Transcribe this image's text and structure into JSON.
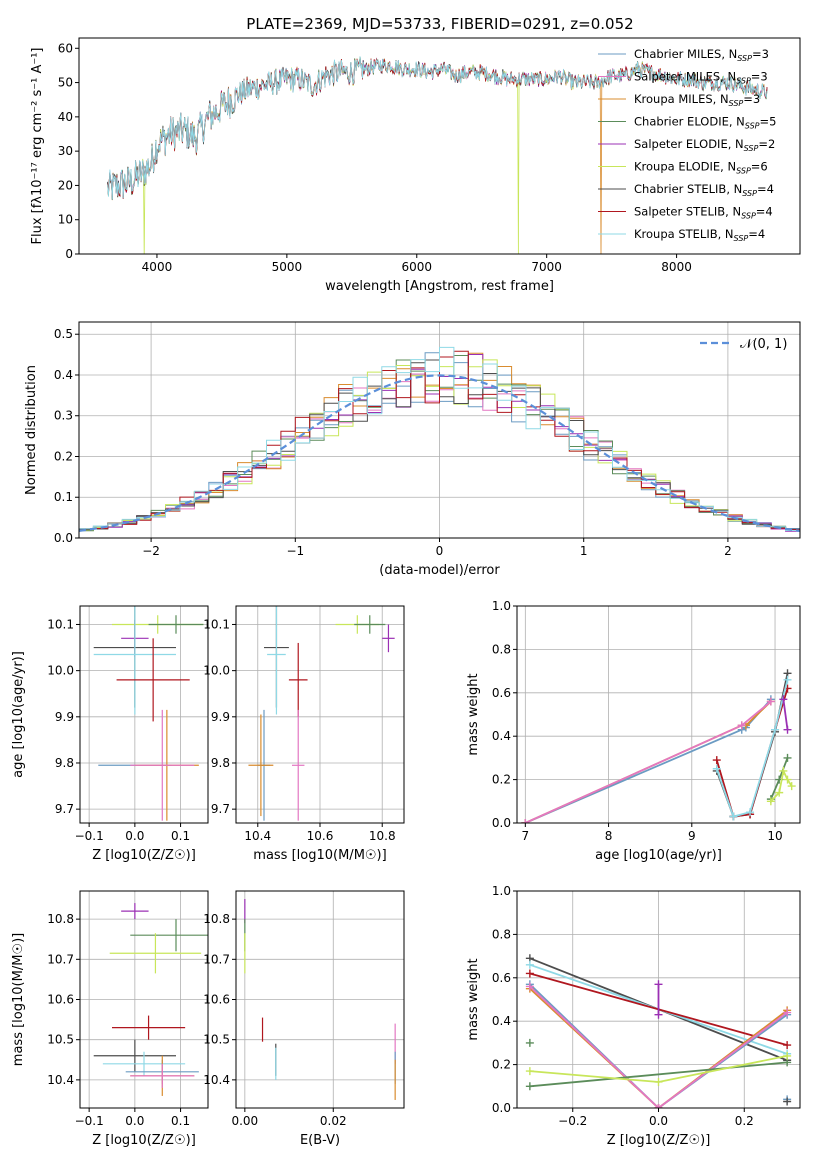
{
  "figure": {
    "title": "PLATE=2369, MJD=53733, FIBERID=0291, z=0.052"
  },
  "colors": {
    "chabrier_miles": "#6b9bc3",
    "salpeter_miles": "#e377c2",
    "kroupa_miles": "#d98c2f",
    "chabrier_elodie": "#5b8c5a",
    "salpeter_elodie": "#9b30b4",
    "kroupa_elodie": "#c8e65a",
    "chabrier_stelib": "#4d4d4d",
    "salpeter_stelib": "#b0171f",
    "kroupa_stelib": "#8fd9e6",
    "gaussian": "#5b8fd9"
  },
  "chart_data": [
    {
      "id": "spectrum",
      "type": "line",
      "xlabel": "wavelength [Angstrom, rest frame]",
      "ylabel": "Flux [fλ10⁻¹⁷ erg cm⁻² s⁻¹ A⁻¹]",
      "xlim": [
        3400,
        8950
      ],
      "ylim": [
        0,
        63
      ],
      "xticks": [
        4000,
        5000,
        6000,
        7000,
        8000
      ],
      "yticks": [
        0,
        10,
        20,
        30,
        40,
        50,
        60
      ],
      "legend_position": "top-right",
      "legend": [
        "Chabrier MILES, N_SSP=3",
        "Salpeter MILES, N_SSP=3",
        "Kroupa MILES, N_SSP=3",
        "Chabrier ELODIE, N_SSP=5",
        "Salpeter ELODIE, N_SSP=2",
        "Kroupa ELODIE, N_SSP=6",
        "Chabrier STELIB, N_SSP=4",
        "Salpeter STELIB, N_SSP=4",
        "Kroupa STELIB, N_SSP=4"
      ],
      "continuum": {
        "x": [
          3620,
          3700,
          3800,
          3900,
          3950,
          4000,
          4100,
          4200,
          4300,
          4400,
          4500,
          4600,
          4700,
          4800,
          4900,
          5000,
          5100,
          5200,
          5300,
          5400,
          5500,
          5600,
          5700,
          5800,
          5900,
          6000,
          6100,
          6200,
          6300,
          6400,
          6500,
          6600,
          6700,
          6800,
          6900,
          7000,
          7100,
          7200,
          7300,
          7400,
          7500,
          7600,
          7700,
          7800,
          7900,
          8000,
          8100,
          8200,
          8300,
          8400,
          8500,
          8600,
          8700
        ],
        "y": [
          19,
          20,
          21,
          24,
          26,
          32,
          35,
          36,
          34,
          40,
          43,
          46,
          48,
          49,
          50,
          51,
          51,
          49,
          52,
          53,
          53,
          54,
          55,
          55,
          54,
          54,
          53,
          54,
          52,
          53,
          53,
          52,
          51,
          51,
          51,
          51,
          52,
          50,
          50,
          50,
          52,
          52,
          54,
          53,
          52,
          51,
          51,
          50,
          50,
          50,
          49,
          48,
          47
        ]
      },
      "dropouts": [
        {
          "series": "kroupa_elodie",
          "x": 3900
        },
        {
          "series": "kroupa_elodie",
          "x": 6780
        },
        {
          "series": "kroupa_miles",
          "x": 7420
        }
      ]
    },
    {
      "id": "residuals",
      "type": "step",
      "xlabel": "(data-model)/error",
      "ylabel": "Normed distribution",
      "xlim": [
        -2.5,
        2.5
      ],
      "ylim": [
        0,
        0.53
      ],
      "xticks": [
        -2,
        -1,
        0,
        1,
        2
      ],
      "yticks": [
        0.0,
        0.1,
        0.2,
        0.3,
        0.4,
        0.5
      ],
      "legend_position": "top-right",
      "gaussian_label": "𝒩(0, 1)"
    },
    {
      "id": "age_vs_Z",
      "type": "errorbar",
      "xlabel": "Z [log10(Z/Z☉)]",
      "ylabel": "age [log10(age/yr)]",
      "xlim": [
        -0.12,
        0.16
      ],
      "ylim": [
        9.67,
        10.14
      ],
      "xticks": [
        -0.1,
        0.0,
        0.1
      ],
      "yticks": [
        9.7,
        9.8,
        9.9,
        10.0,
        10.1
      ],
      "points": [
        {
          "s": "kroupa_elodie",
          "x": 0.05,
          "y": 10.1,
          "xerr": 0.1,
          "yerr": 0.02
        },
        {
          "s": "chabrier_elodie",
          "x": 0.09,
          "y": 10.1,
          "xerr": 0.06,
          "yerr": 0.02
        },
        {
          "s": "salpeter_elodie",
          "x": 0.0,
          "y": 10.07,
          "xerr": 0.03,
          "yerr": 0.04
        },
        {
          "s": "chabrier_stelib",
          "x": 0.0,
          "y": 10.05,
          "xerr": 0.09,
          "yerr": 0.13
        },
        {
          "s": "kroupa_stelib",
          "x": 0.0,
          "y": 10.035,
          "xerr": 0.09,
          "yerr": 0.13
        },
        {
          "s": "salpeter_stelib",
          "x": 0.04,
          "y": 9.98,
          "xerr": 0.08,
          "yerr": 0.09
        },
        {
          "s": "chabrier_miles",
          "x": 0.0,
          "y": 9.795,
          "xerr": 0.08,
          "yerr": 0.0
        },
        {
          "s": "kroupa_miles",
          "x": 0.07,
          "y": 9.795,
          "xerr": 0.07,
          "yerr": 0.12
        },
        {
          "s": "salpeter_miles",
          "x": 0.06,
          "y": 9.795,
          "xerr": 0.07,
          "yerr": 0.12
        }
      ]
    },
    {
      "id": "age_vs_mass",
      "type": "errorbar",
      "xlabel": "mass [log10(M/M☉)]",
      "ylabel": "",
      "xlim": [
        10.33,
        10.87
      ],
      "ylim": [
        9.67,
        10.14
      ],
      "xticks": [
        10.4,
        10.6,
        10.8
      ],
      "yticks": [
        9.7,
        9.8,
        9.9,
        10.0,
        10.1
      ],
      "points": [
        {
          "s": "kroupa_elodie",
          "x": 10.72,
          "y": 10.1,
          "xerr": 0.07,
          "yerr": 0.02
        },
        {
          "s": "chabrier_elodie",
          "x": 10.76,
          "y": 10.1,
          "xerr": 0.05,
          "yerr": 0.02
        },
        {
          "s": "salpeter_elodie",
          "x": 10.82,
          "y": 10.07,
          "xerr": 0.02,
          "yerr": 0.03
        },
        {
          "s": "chabrier_stelib",
          "x": 10.46,
          "y": 10.05,
          "xerr": 0.04,
          "yerr": 0.13
        },
        {
          "s": "kroupa_stelib",
          "x": 10.46,
          "y": 10.035,
          "xerr": 0.03,
          "yerr": 0.13
        },
        {
          "s": "salpeter_stelib",
          "x": 10.53,
          "y": 9.98,
          "xerr": 0.03,
          "yerr": 0.08
        },
        {
          "s": "chabrier_miles",
          "x": 10.42,
          "y": 9.795,
          "xerr": 0.02,
          "yerr": 0.12
        },
        {
          "s": "kroupa_miles",
          "x": 10.41,
          "y": 9.795,
          "xerr": 0.04,
          "yerr": 0.11
        },
        {
          "s": "salpeter_miles",
          "x": 10.53,
          "y": 9.795,
          "xerr": 0.02,
          "yerr": 0.12
        }
      ]
    },
    {
      "id": "weight_vs_age",
      "type": "line",
      "xlabel": "age [log10(age/yr)]",
      "ylabel": "mass weight",
      "xlim": [
        6.9,
        10.3
      ],
      "ylim": [
        0,
        1.0
      ],
      "xticks": [
        7,
        8,
        9,
        10
      ],
      "yticks": [
        0.0,
        0.2,
        0.4,
        0.6,
        0.8,
        1.0
      ],
      "series": [
        {
          "s": "chabrier_miles",
          "x": [
            7.0,
            9.6,
            9.65,
            9.95
          ],
          "y": [
            0.0,
            0.43,
            0.44,
            0.57
          ]
        },
        {
          "s": "kroupa_miles",
          "x": [
            7.0,
            9.6,
            9.65,
            9.95
          ],
          "y": [
            0.0,
            0.45,
            0.45,
            0.56
          ]
        },
        {
          "s": "salpeter_miles",
          "x": [
            7.0,
            9.6,
            9.95
          ],
          "y": [
            0.0,
            0.45,
            0.56
          ]
        },
        {
          "s": "chabrier_stelib",
          "x": [
            9.3,
            9.5,
            9.7,
            10.0,
            10.15
          ],
          "y": [
            0.24,
            0.03,
            0.04,
            0.42,
            0.69
          ]
        },
        {
          "s": "salpeter_stelib",
          "x": [
            9.3,
            9.5,
            9.7,
            10.0,
            10.15
          ],
          "y": [
            0.29,
            0.03,
            0.04,
            0.43,
            0.62
          ]
        },
        {
          "s": "kroupa_stelib",
          "x": [
            9.3,
            9.5,
            9.7,
            10.0,
            10.15
          ],
          "y": [
            0.25,
            0.03,
            0.05,
            0.43,
            0.66
          ]
        },
        {
          "s": "chabrier_elodie",
          "x": [
            9.95,
            10.05,
            10.15
          ],
          "y": [
            0.11,
            0.2,
            0.3
          ]
        },
        {
          "s": "kroupa_elodie",
          "x": [
            9.95,
            10.05,
            10.1,
            10.15,
            10.2
          ],
          "y": [
            0.1,
            0.14,
            0.24,
            0.2,
            0.17
          ]
        },
        {
          "s": "salpeter_elodie",
          "x": [
            10.1,
            10.15
          ],
          "y": [
            0.57,
            0.43
          ]
        }
      ]
    },
    {
      "id": "mass_vs_Z",
      "type": "errorbar",
      "xlabel": "Z [log10(Z/Z☉)]",
      "ylabel": "mass [log10(M/M☉)]",
      "xlim": [
        -0.12,
        0.16
      ],
      "ylim": [
        10.33,
        10.87
      ],
      "xticks": [
        -0.1,
        0.0,
        0.1
      ],
      "yticks": [
        10.4,
        10.5,
        10.6,
        10.7,
        10.8
      ],
      "points": [
        {
          "s": "salpeter_elodie",
          "x": 0.0,
          "y": 10.82,
          "xerr": 0.03,
          "yerr": 0.02
        },
        {
          "s": "chabrier_elodie",
          "x": 0.09,
          "y": 10.76,
          "xerr": 0.1,
          "yerr": 0.04
        },
        {
          "s": "kroupa_elodie",
          "x": 0.045,
          "y": 10.715,
          "xerr": 0.1,
          "yerr": 0.05
        },
        {
          "s": "salpeter_stelib",
          "x": 0.03,
          "y": 10.53,
          "xerr": 0.08,
          "yerr": 0.03
        },
        {
          "s": "chabrier_stelib",
          "x": 0.0,
          "y": 10.46,
          "xerr": 0.09,
          "yerr": 0.04
        },
        {
          "s": "kroupa_stelib",
          "x": 0.02,
          "y": 10.44,
          "xerr": 0.09,
          "yerr": 0.03
        },
        {
          "s": "chabrier_miles",
          "x": 0.06,
          "y": 10.42,
          "xerr": 0.08,
          "yerr": 0.03
        },
        {
          "s": "kroupa_miles",
          "x": 0.06,
          "y": 10.41,
          "xerr": 0.07,
          "yerr": 0.05
        },
        {
          "s": "salpeter_miles",
          "x": 0.06,
          "y": 10.41,
          "xerr": 0.07,
          "yerr": 0.03
        }
      ]
    },
    {
      "id": "mass_vs_ebv",
      "type": "errorbar",
      "xlabel": "E(B-V)",
      "ylabel": "",
      "xlim": [
        -0.002,
        0.036
      ],
      "ylim": [
        10.33,
        10.87
      ],
      "xticks": [
        0.0,
        0.02
      ],
      "yticks": [
        10.4,
        10.5,
        10.6,
        10.7,
        10.8
      ],
      "points": [
        {
          "s": "salpeter_elodie",
          "x": 0.0,
          "y": 10.82,
          "xerr": 0.0,
          "yerr": 0.03
        },
        {
          "s": "chabrier_elodie",
          "x": 0.0,
          "y": 10.76,
          "xerr": 0.0,
          "yerr": 0.04
        },
        {
          "s": "kroupa_elodie",
          "x": 0.0,
          "y": 10.715,
          "xerr": 0.0,
          "yerr": 0.05
        },
        {
          "s": "salpeter_stelib",
          "x": 0.004,
          "y": 10.525,
          "xerr": 0.0,
          "yerr": 0.03
        },
        {
          "s": "chabrier_stelib",
          "x": 0.007,
          "y": 10.45,
          "xerr": 0.0,
          "yerr": 0.04
        },
        {
          "s": "kroupa_stelib",
          "x": 0.007,
          "y": 10.44,
          "xerr": 0.0,
          "yerr": 0.04
        },
        {
          "s": "salpeter_miles",
          "x": 0.034,
          "y": 10.49,
          "xerr": 0.0,
          "yerr": 0.05
        },
        {
          "s": "chabrier_miles",
          "x": 0.034,
          "y": 10.43,
          "xerr": 0.0,
          "yerr": 0.04
        },
        {
          "s": "kroupa_miles",
          "x": 0.034,
          "y": 10.4,
          "xerr": 0.0,
          "yerr": 0.05
        }
      ]
    },
    {
      "id": "weight_vs_Z",
      "type": "line",
      "xlabel": "Z [log10(Z/Z☉)]",
      "ylabel": "mass weight",
      "xlim": [
        -0.33,
        0.33
      ],
      "ylim": [
        0,
        1.0
      ],
      "xticks": [
        -0.2,
        0.0,
        0.2
      ],
      "yticks": [
        0.0,
        0.2,
        0.4,
        0.6,
        0.8,
        1.0
      ],
      "series": [
        {
          "s": "chabrier_stelib",
          "x": [
            -0.3,
            0.3
          ],
          "y": [
            0.69,
            0.22
          ]
        },
        {
          "s": "kroupa_stelib",
          "x": [
            -0.3,
            0.3
          ],
          "y": [
            0.66,
            0.25
          ]
        },
        {
          "s": "salpeter_stelib",
          "x": [
            -0.3,
            0.3
          ],
          "y": [
            0.62,
            0.29
          ]
        },
        {
          "s": "chabrier_miles",
          "x": [
            -0.3,
            0.0,
            0.3
          ],
          "y": [
            0.57,
            0.0,
            0.43
          ]
        },
        {
          "s": "kroupa_miles",
          "x": [
            -0.3,
            0.0,
            0.3
          ],
          "y": [
            0.55,
            0.0,
            0.45
          ]
        },
        {
          "s": "salpeter_miles",
          "x": [
            -0.3,
            0.0,
            0.3
          ],
          "y": [
            0.56,
            0.0,
            0.44
          ]
        },
        {
          "s": "chabrier_elodie",
          "x": [
            -0.3,
            0.3
          ],
          "y": [
            0.1,
            0.21
          ]
        },
        {
          "s": "kroupa_elodie",
          "x": [
            -0.3,
            0.0,
            0.3
          ],
          "y": [
            0.17,
            0.12,
            0.24
          ]
        },
        {
          "s": "salpeter_elodie",
          "x": [
            0.0,
            0.0
          ],
          "y": [
            0.43,
            0.57
          ]
        }
      ],
      "markers": [
        {
          "s": "chabrier_elodie",
          "x": -0.3,
          "y": 0.3
        },
        {
          "s": "chabrier_miles",
          "x": 0.3,
          "y": 0.04
        },
        {
          "s": "chabrier_stelib",
          "x": 0.3,
          "y": 0.03
        }
      ]
    }
  ]
}
